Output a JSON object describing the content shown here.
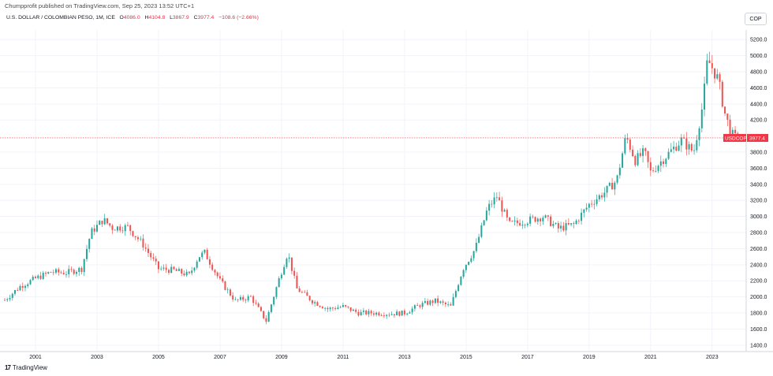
{
  "header": {
    "published_by": "Chumpprofit published on TradingView.com, Sep 25, 2023 13:52 UTC+1",
    "symbol_title": "U.S. DOLLAR / COLOMBIAN PESO, 1M, ICE",
    "ohlc": [
      {
        "key": "O",
        "value": "4086.0"
      },
      {
        "key": "H",
        "value": "4104.8"
      },
      {
        "key": "L",
        "value": "3867.9"
      },
      {
        "key": "C",
        "value": "3977.4"
      }
    ],
    "change": "−108.6 (−2.66%)"
  },
  "currency_button": "COP",
  "footer": {
    "logo": "17",
    "brand": "TradingView"
  },
  "colors": {
    "up": "#26a69a",
    "down": "#ef5350",
    "last_price": "#f23645",
    "grid": "#f0f3fa",
    "axis": "#d1d4dc"
  },
  "chart_data": {
    "type": "candlestick",
    "title": "U.S. DOLLAR / COLOMBIAN PESO, 1M, ICE",
    "symbol": "USDCOP",
    "interval": "1M",
    "x_range": [
      2000.0,
      2023.8
    ],
    "y_range": [
      1320,
      5320
    ],
    "x_ticks": [
      "2001",
      "2003",
      "2005",
      "2007",
      "2009",
      "2011",
      "2013",
      "2015",
      "2017",
      "2019",
      "2021",
      "2023"
    ],
    "y_ticks": [
      "5200.0",
      "5000.0",
      "4800.0",
      "4600.0",
      "4400.0",
      "4200.0",
      "3800.0",
      "3600.0",
      "3400.0",
      "3200.0",
      "3000.0",
      "2800.0",
      "2600.0",
      "2400.0",
      "2200.0",
      "2000.0",
      "1800.0",
      "1600.0",
      "1400.0"
    ],
    "last_price": {
      "label": "USDCOP",
      "value": "3977.4",
      "y": 3977.4
    },
    "monthly_close_path": [
      [
        2000.0,
        1960
      ],
      [
        2000.5,
        2130
      ],
      [
        2001.0,
        2230
      ],
      [
        2001.5,
        2310
      ],
      [
        2002.0,
        2300
      ],
      [
        2002.5,
        2350
      ],
      [
        2002.8,
        2800
      ],
      [
        2003.2,
        2960
      ],
      [
        2003.5,
        2860
      ],
      [
        2004.0,
        2870
      ],
      [
        2004.5,
        2650
      ],
      [
        2005.0,
        2350
      ],
      [
        2005.5,
        2330
      ],
      [
        2006.0,
        2270
      ],
      [
        2006.3,
        2500
      ],
      [
        2006.5,
        2550
      ],
      [
        2007.0,
        2200
      ],
      [
        2007.5,
        1950
      ],
      [
        2008.0,
        2000
      ],
      [
        2008.5,
        1700
      ],
      [
        2008.9,
        2200
      ],
      [
        2009.2,
        2550
      ],
      [
        2009.5,
        2100
      ],
      [
        2010.0,
        1950
      ],
      [
        2010.5,
        1850
      ],
      [
        2011.0,
        1880
      ],
      [
        2011.5,
        1800
      ],
      [
        2012.0,
        1800
      ],
      [
        2012.5,
        1790
      ],
      [
        2013.0,
        1800
      ],
      [
        2013.5,
        1900
      ],
      [
        2014.0,
        1950
      ],
      [
        2014.5,
        1880
      ],
      [
        2014.9,
        2350
      ],
      [
        2015.3,
        2600
      ],
      [
        2015.7,
        3100
      ],
      [
        2016.0,
        3250
      ],
      [
        2016.4,
        2900
      ],
      [
        2017.0,
        2950
      ],
      [
        2017.5,
        3000
      ],
      [
        2018.0,
        2850
      ],
      [
        2018.5,
        2900
      ],
      [
        2019.0,
        3150
      ],
      [
        2019.5,
        3300
      ],
      [
        2019.9,
        3450
      ],
      [
        2020.2,
        4000
      ],
      [
        2020.5,
        3700
      ],
      [
        2020.8,
        3800
      ],
      [
        2021.0,
        3550
      ],
      [
        2021.5,
        3750
      ],
      [
        2022.0,
        3950
      ],
      [
        2022.4,
        3800
      ],
      [
        2022.7,
        4400
      ],
      [
        2022.85,
        4950
      ],
      [
        2023.0,
        4850
      ],
      [
        2023.2,
        4700
      ],
      [
        2023.4,
        4300
      ],
      [
        2023.6,
        4050
      ],
      [
        2023.72,
        3977.4
      ]
    ]
  }
}
